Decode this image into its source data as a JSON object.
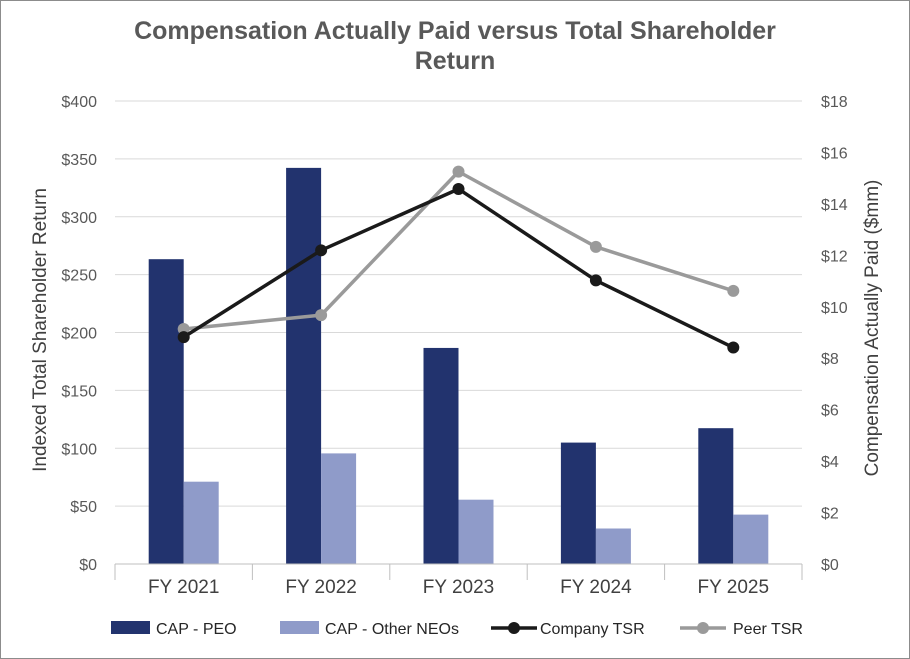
{
  "chart_data": {
    "type": "bar",
    "title": "Compensation Actually Paid versus Total Shareholder Return",
    "categories": [
      "FY 2021",
      "FY 2022",
      "FY 2023",
      "FY 2024",
      "FY 2025"
    ],
    "ylabel": "Indexed Total Shareholder Return",
    "y2label": "Compensation Actually Paid ($mm)",
    "ylim": [
      0,
      400
    ],
    "y2lim": [
      0,
      18
    ],
    "y_ticks": [
      "$0",
      "$50",
      "$100",
      "$150",
      "$200",
      "$250",
      "$300",
      "$350",
      "$400"
    ],
    "y2_ticks": [
      "$0",
      "$2",
      "$4",
      "$6",
      "$8",
      "$10",
      "$12",
      "$14",
      "$16",
      "$18"
    ],
    "grid": true,
    "legend_position": "bottom",
    "series": [
      {
        "name": "CAP - PEO",
        "kind": "bar",
        "axis": "right",
        "color": "#22336e",
        "values": [
          11.85,
          15.4,
          8.4,
          4.72,
          5.28
        ]
      },
      {
        "name": "CAP - Other NEOs",
        "kind": "bar",
        "axis": "right",
        "color": "#8f9bc9",
        "values": [
          3.2,
          4.3,
          2.5,
          1.38,
          1.92
        ]
      },
      {
        "name": "Company TSR",
        "kind": "line",
        "axis": "left",
        "color": "#1a1a1a",
        "values": [
          196,
          271,
          324,
          245,
          187
        ]
      },
      {
        "name": "Peer TSR",
        "kind": "line",
        "axis": "left",
        "color": "#9a9a9a",
        "values": [
          203,
          215,
          339,
          274,
          236
        ]
      }
    ]
  }
}
